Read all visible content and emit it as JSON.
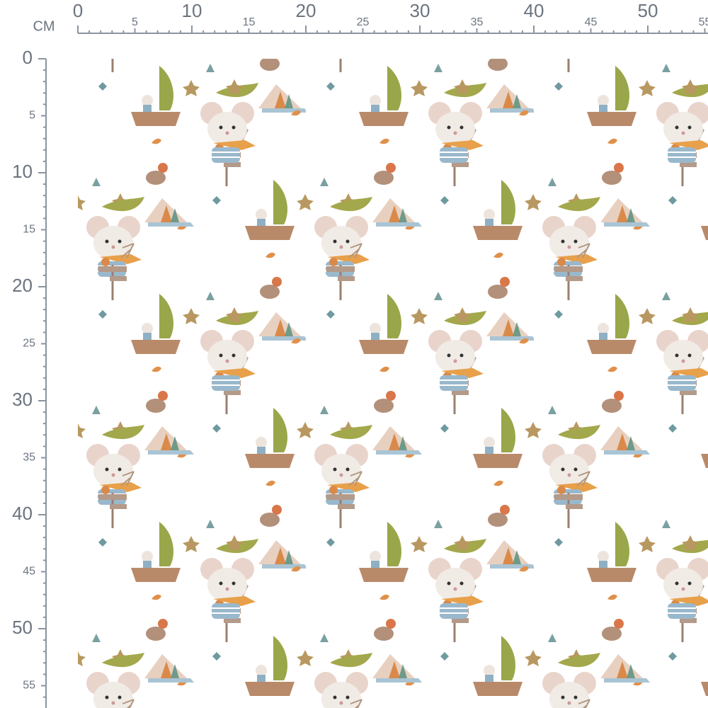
{
  "ruler": {
    "unit": "CM",
    "x_ticks": [
      0,
      5,
      10,
      15,
      20,
      25,
      30,
      35,
      40,
      45,
      50,
      55
    ],
    "y_ticks": [
      0,
      5,
      10,
      15,
      20,
      25,
      30,
      35,
      40,
      45,
      50,
      55
    ]
  }
}
